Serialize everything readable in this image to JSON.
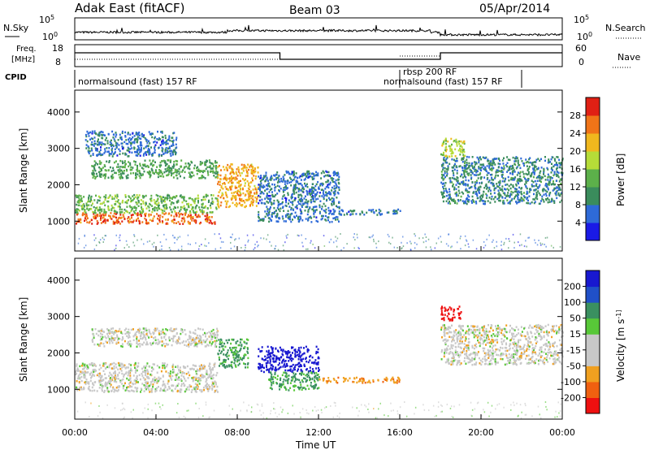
{
  "header": {
    "station": "Adak East (fitACF)",
    "beam": "Beam 03",
    "date": "05/Apr/2014"
  },
  "panels": {
    "nsky_label": "N.Sky",
    "nsearch_label": "N.Search",
    "freq_label_1": "Freq.",
    "freq_label_2": "[MHz]",
    "nave_label": "Nave",
    "cpid_label": "CPID",
    "nsky_ticks": [
      "10^5",
      "10^0"
    ],
    "nsearch_ticks": [
      "10^5",
      "10^0"
    ],
    "freq_ticks": [
      "18",
      "8"
    ],
    "nave_ticks": [
      "60",
      "0"
    ]
  },
  "cpid": [
    {
      "text": "normalsound (fast) 157 RF",
      "start_hour": 0
    },
    {
      "text": "rbsp 200 RF",
      "start_hour": 16.0
    },
    {
      "text": "normalsound (fast) 157 RF",
      "start_hour": 18.0
    }
  ],
  "colors": {
    "power": [
      "#1a1ae6",
      "#2e6ad8",
      "#3a8c5c",
      "#5cb04a",
      "#b6dc38",
      "#f0b81e",
      "#f07418",
      "#e02014"
    ],
    "velocity": [
      "#ee1010",
      "#f06010",
      "#f0a020",
      "#c8c8c8",
      "#c8c8c8",
      "#58c838",
      "#3a9060",
      "#2050c8",
      "#1818d0"
    ]
  },
  "chart_data": [
    {
      "type": "heatmap",
      "name": "Power",
      "ylabel": "Slant Range [km]",
      "ylim": [
        180,
        4600
      ],
      "xlim_hours": [
        0,
        24
      ],
      "yticks": [
        "1000",
        "2000",
        "3000",
        "4000"
      ],
      "colorbar_label": "Power [dB]",
      "colorbar_ticks": [
        "4",
        "8",
        "12",
        "16",
        "20",
        "24",
        "28"
      ],
      "features": [
        {
          "t": [
            0.0,
            7.0
          ],
          "range_km": [
            950,
            1250
          ],
          "value_db": 28
        },
        {
          "t": [
            0.0,
            7.0
          ],
          "range_km": [
            1250,
            1750
          ],
          "value_db": 14
        },
        {
          "t": [
            0.8,
            7.0
          ],
          "range_km": [
            2200,
            2700
          ],
          "value_db": 12
        },
        {
          "t": [
            0.5,
            5.0
          ],
          "range_km": [
            2800,
            3500
          ],
          "value_db": 6
        },
        {
          "t": [
            7.0,
            9.0
          ],
          "range_km": [
            1400,
            2600
          ],
          "value_db": 24
        },
        {
          "t": [
            9.0,
            13.0
          ],
          "range_km": [
            1000,
            2400
          ],
          "value_db": 6
        },
        {
          "t": [
            13.0,
            16.0
          ],
          "range_km": [
            1200,
            1350
          ],
          "value_db": 6
        },
        {
          "t": [
            18.0,
            19.2
          ],
          "range_km": [
            2800,
            3300
          ],
          "value_db": 18
        },
        {
          "t": [
            18.0,
            24.0
          ],
          "range_km": [
            1500,
            2800
          ],
          "value_db": 8
        }
      ]
    },
    {
      "type": "heatmap",
      "name": "Velocity",
      "ylabel": "Slant Range [km]",
      "ylim": [
        180,
        4600
      ],
      "xlim_hours": [
        0,
        24
      ],
      "yticks": [
        "1000",
        "2000",
        "3000",
        "4000"
      ],
      "xticks": [
        "00:00",
        "04:00",
        "08:00",
        "12:00",
        "16:00",
        "20:00",
        "00:00"
      ],
      "xlabel": "Time UT",
      "colorbar_label": "Velocity [m s^-1]",
      "colorbar_ticks": [
        "-200",
        "-100",
        "-50",
        "-15",
        "15",
        "50",
        "100",
        "200"
      ],
      "features": [
        {
          "t": [
            0.0,
            7.0
          ],
          "range_km": [
            950,
            1750
          ],
          "value_ms": 0
        },
        {
          "t": [
            0.8,
            7.0
          ],
          "range_km": [
            2200,
            2700
          ],
          "value_ms": 0
        },
        {
          "t": [
            7.0,
            8.5
          ],
          "range_km": [
            1600,
            2400
          ],
          "value_ms": 60
        },
        {
          "t": [
            9.0,
            12.0
          ],
          "range_km": [
            1500,
            2200
          ],
          "value_ms": 220
        },
        {
          "t": [
            9.5,
            12.0
          ],
          "range_km": [
            1000,
            1500
          ],
          "value_ms": 60
        },
        {
          "t": [
            12.0,
            16.0
          ],
          "range_km": [
            1200,
            1350
          ],
          "value_ms": -40
        },
        {
          "t": [
            18.0,
            19.0
          ],
          "range_km": [
            2900,
            3300
          ],
          "value_ms": -150
        },
        {
          "t": [
            18.0,
            24.0
          ],
          "range_km": [
            1700,
            2800
          ],
          "value_ms": 0
        }
      ]
    }
  ]
}
